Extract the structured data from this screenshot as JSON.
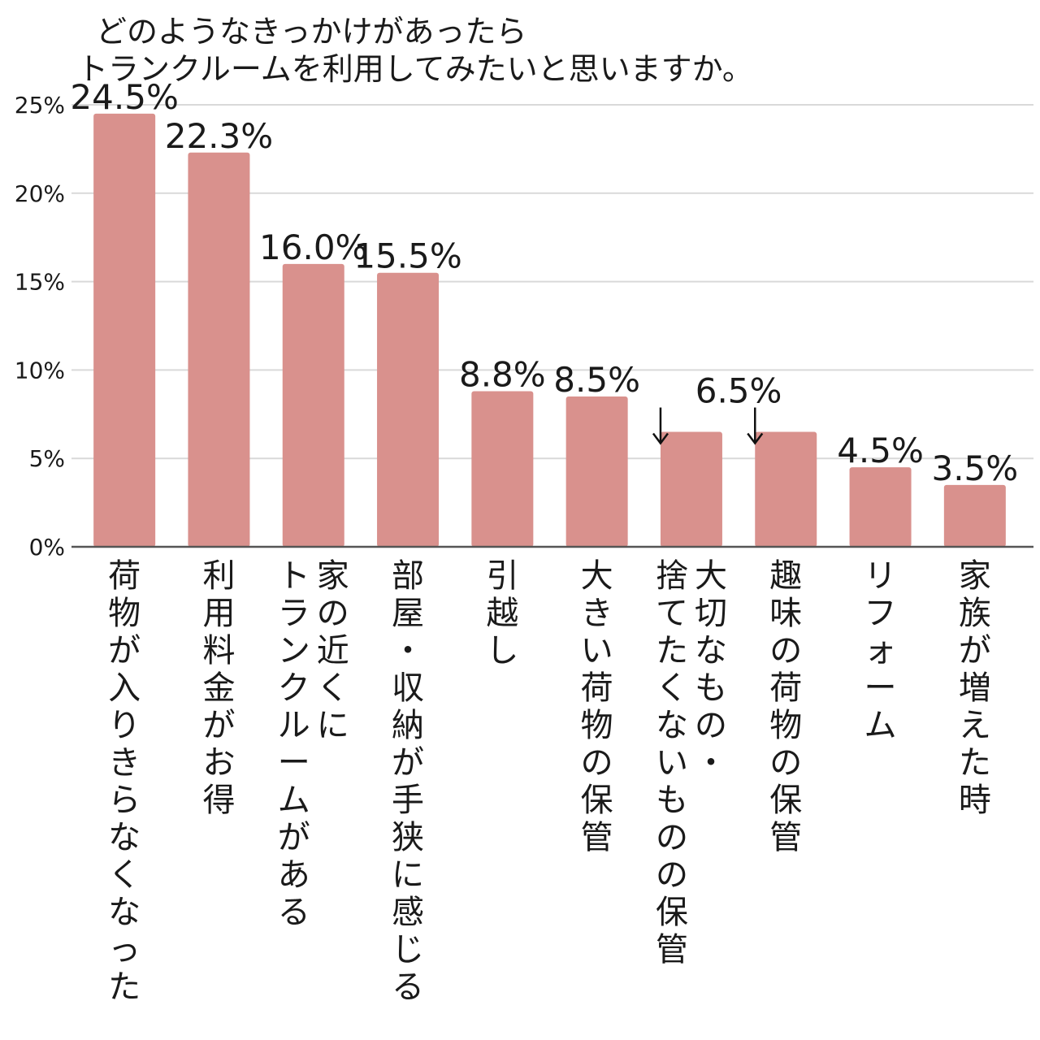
{
  "chart_data": {
    "type": "bar",
    "title": "どのようなきっかけがあったら\nトランクルームを利用してみたいと思いますか。",
    "categories": [
      "荷物が入りきらなくなった",
      "利用料金がお得",
      "家の近くに\nトランクルームがある",
      "部屋・収納が手狭に感じる",
      "引越し",
      "大きい荷物の保管",
      "大切なもの・\n捨てたくないものの保管",
      "趣味の荷物の保管",
      "リフォーム",
      "家族が増えた時"
    ],
    "values": [
      24.5,
      22.3,
      16.0,
      15.5,
      8.8,
      8.5,
      6.5,
      6.5,
      4.5,
      3.5
    ],
    "value_labels": [
      "24.5%",
      "22.3%",
      "16.0%",
      "15.5%",
      "8.8%",
      "8.5%",
      "6.5%",
      "",
      "4.5%",
      "3.5%"
    ],
    "arrow_indices": [
      6,
      7
    ],
    "ylim": [
      0,
      25
    ],
    "yticks": [
      0,
      5,
      10,
      15,
      20,
      25
    ],
    "ytick_labels": [
      "0%",
      "5%",
      "10%",
      "15%",
      "20%",
      "25%"
    ],
    "grid": true,
    "bar_color": "#d9918d",
    "grid_color": "#d9d9d9",
    "axis_color": "#555555"
  }
}
